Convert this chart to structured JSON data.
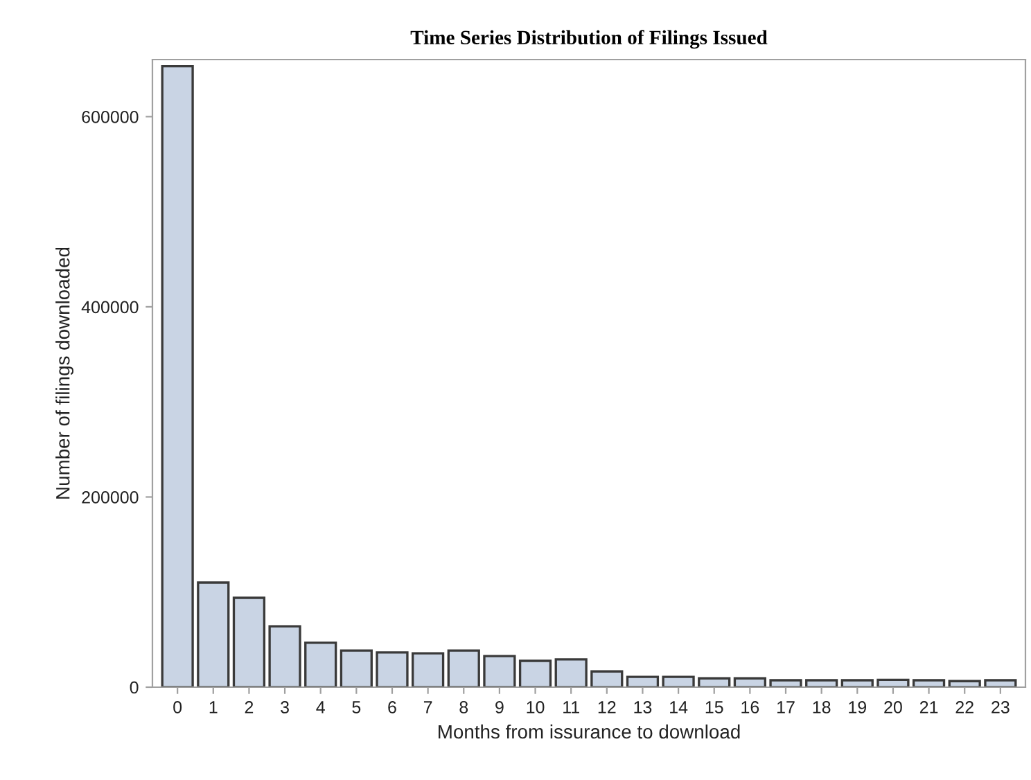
{
  "chart_data": {
    "type": "bar",
    "title": "Time Series Distribution of Filings Issued",
    "xlabel": "Months from issurance to download",
    "ylabel": "Number of filings downloaded",
    "categories": [
      "0",
      "1",
      "2",
      "3",
      "4",
      "5",
      "6",
      "7",
      "8",
      "9",
      "10",
      "11",
      "12",
      "13",
      "14",
      "15",
      "16",
      "17",
      "18",
      "19",
      "20",
      "21",
      "22",
      "23"
    ],
    "values": [
      653000,
      110000,
      94000,
      64000,
      46700,
      38500,
      36500,
      35600,
      38500,
      32700,
      27700,
      29200,
      16600,
      10800,
      10800,
      9300,
      9300,
      7300,
      7300,
      7300,
      7800,
      7300,
      6400,
      7300
    ],
    "color": "#c9d4e4",
    "ylim": [
      0,
      660000
    ],
    "yticks": [
      0,
      200000,
      400000,
      600000
    ],
    "grid": false,
    "legend": false
  }
}
